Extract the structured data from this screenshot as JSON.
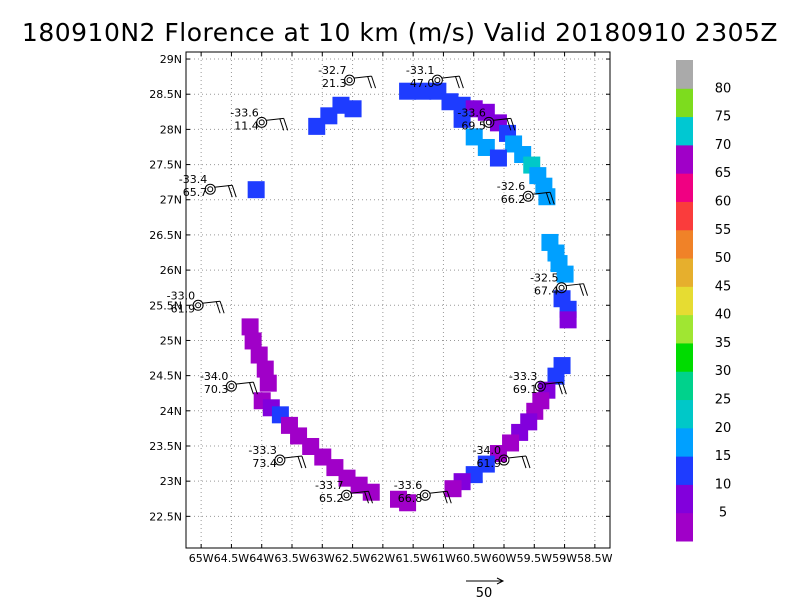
{
  "title": "180910N2 Florence at 10 km (m/s) Valid 20180910 2305Z",
  "lat_labels": [
    "29N",
    "28.5N",
    "28N",
    "27.5N",
    "27N",
    "26.5N",
    "26N",
    "25.5N",
    "25N",
    "24.5N",
    "24N",
    "23.5N",
    "23N",
    "22.5N"
  ],
  "lat_values": [
    29,
    28.5,
    28,
    27.5,
    27,
    26.5,
    26,
    25.5,
    25,
    24.5,
    24,
    23.5,
    23,
    22.5
  ],
  "lon_labels": [
    "65W",
    "64.5W",
    "64W",
    "63.5W",
    "63W",
    "62.5W",
    "62W",
    "61.5W",
    "61W",
    "60.5W",
    "60W",
    "59.5W",
    "59W",
    "58.5W"
  ],
  "lon_values": [
    -65,
    -64.5,
    -64,
    -63.5,
    -63,
    -62.5,
    -62,
    -61.5,
    -61,
    -60.5,
    -60,
    -59.5,
    -59,
    -58.5
  ],
  "map_extent": {
    "lon_min": -65.25,
    "lon_max": -58.25,
    "lat_min": 22.05,
    "lat_max": 29.1
  },
  "colorbar": {
    "colors": [
      "#a000c8",
      "#8200dc",
      "#1e3cff",
      "#00a0ff",
      "#00c8c8",
      "#00d28c",
      "#00dc00",
      "#a0e632",
      "#e6dc32",
      "#e6af2d",
      "#f08228",
      "#fa3c3c",
      "#f00082",
      "#a000c8",
      "#00c8d2",
      "#7ddc1e",
      "#aaaaaa"
    ],
    "labels": [
      "5",
      "10",
      "15",
      "20",
      "25",
      "30",
      "35",
      "40",
      "45",
      "50",
      "55",
      "60",
      "65",
      "70",
      "75",
      "80"
    ]
  },
  "dropsondes": [
    {
      "lon": -62.55,
      "lat": 28.7,
      "label_top": "-32.7",
      "label_bottom": "21.3"
    },
    {
      "lon": -61.1,
      "lat": 28.7,
      "label_top": "-33.1",
      "label_bottom": "47.0"
    },
    {
      "lon": -64.0,
      "lat": 28.1,
      "label_top": "-33.6",
      "label_bottom": "11.4"
    },
    {
      "lon": -60.25,
      "lat": 28.1,
      "label_top": "-33.6",
      "label_bottom": "69.5"
    },
    {
      "lon": -64.85,
      "lat": 27.15,
      "label_top": "-33.4",
      "label_bottom": "65.7"
    },
    {
      "lon": -59.6,
      "lat": 27.05,
      "label_top": "-32.6",
      "label_bottom": "66.2"
    },
    {
      "lon": -59.05,
      "lat": 25.75,
      "label_top": "-32.5",
      "label_bottom": "67.4"
    },
    {
      "lon": -65.05,
      "lat": 25.5,
      "label_top": "-33.0",
      "label_bottom": "61.9"
    },
    {
      "lon": -64.5,
      "lat": 24.35,
      "label_top": "-34.0",
      "label_bottom": "70.3"
    },
    {
      "lon": -59.4,
      "lat": 24.35,
      "label_top": "-33.3",
      "label_bottom": "69.1"
    },
    {
      "lon": -63.7,
      "lat": 23.3,
      "label_top": "-33.3",
      "label_bottom": "73.4"
    },
    {
      "lon": -60.0,
      "lat": 23.3,
      "label_top": "-34.0",
      "label_bottom": "61.9"
    },
    {
      "lon": -62.6,
      "lat": 22.8,
      "label_top": "-33.7",
      "label_bottom": "65.2"
    },
    {
      "lon": -61.3,
      "lat": 22.8,
      "label_top": "-33.6",
      "label_bottom": "66.8"
    }
  ],
  "reference_vector": {
    "label": "50"
  }
}
